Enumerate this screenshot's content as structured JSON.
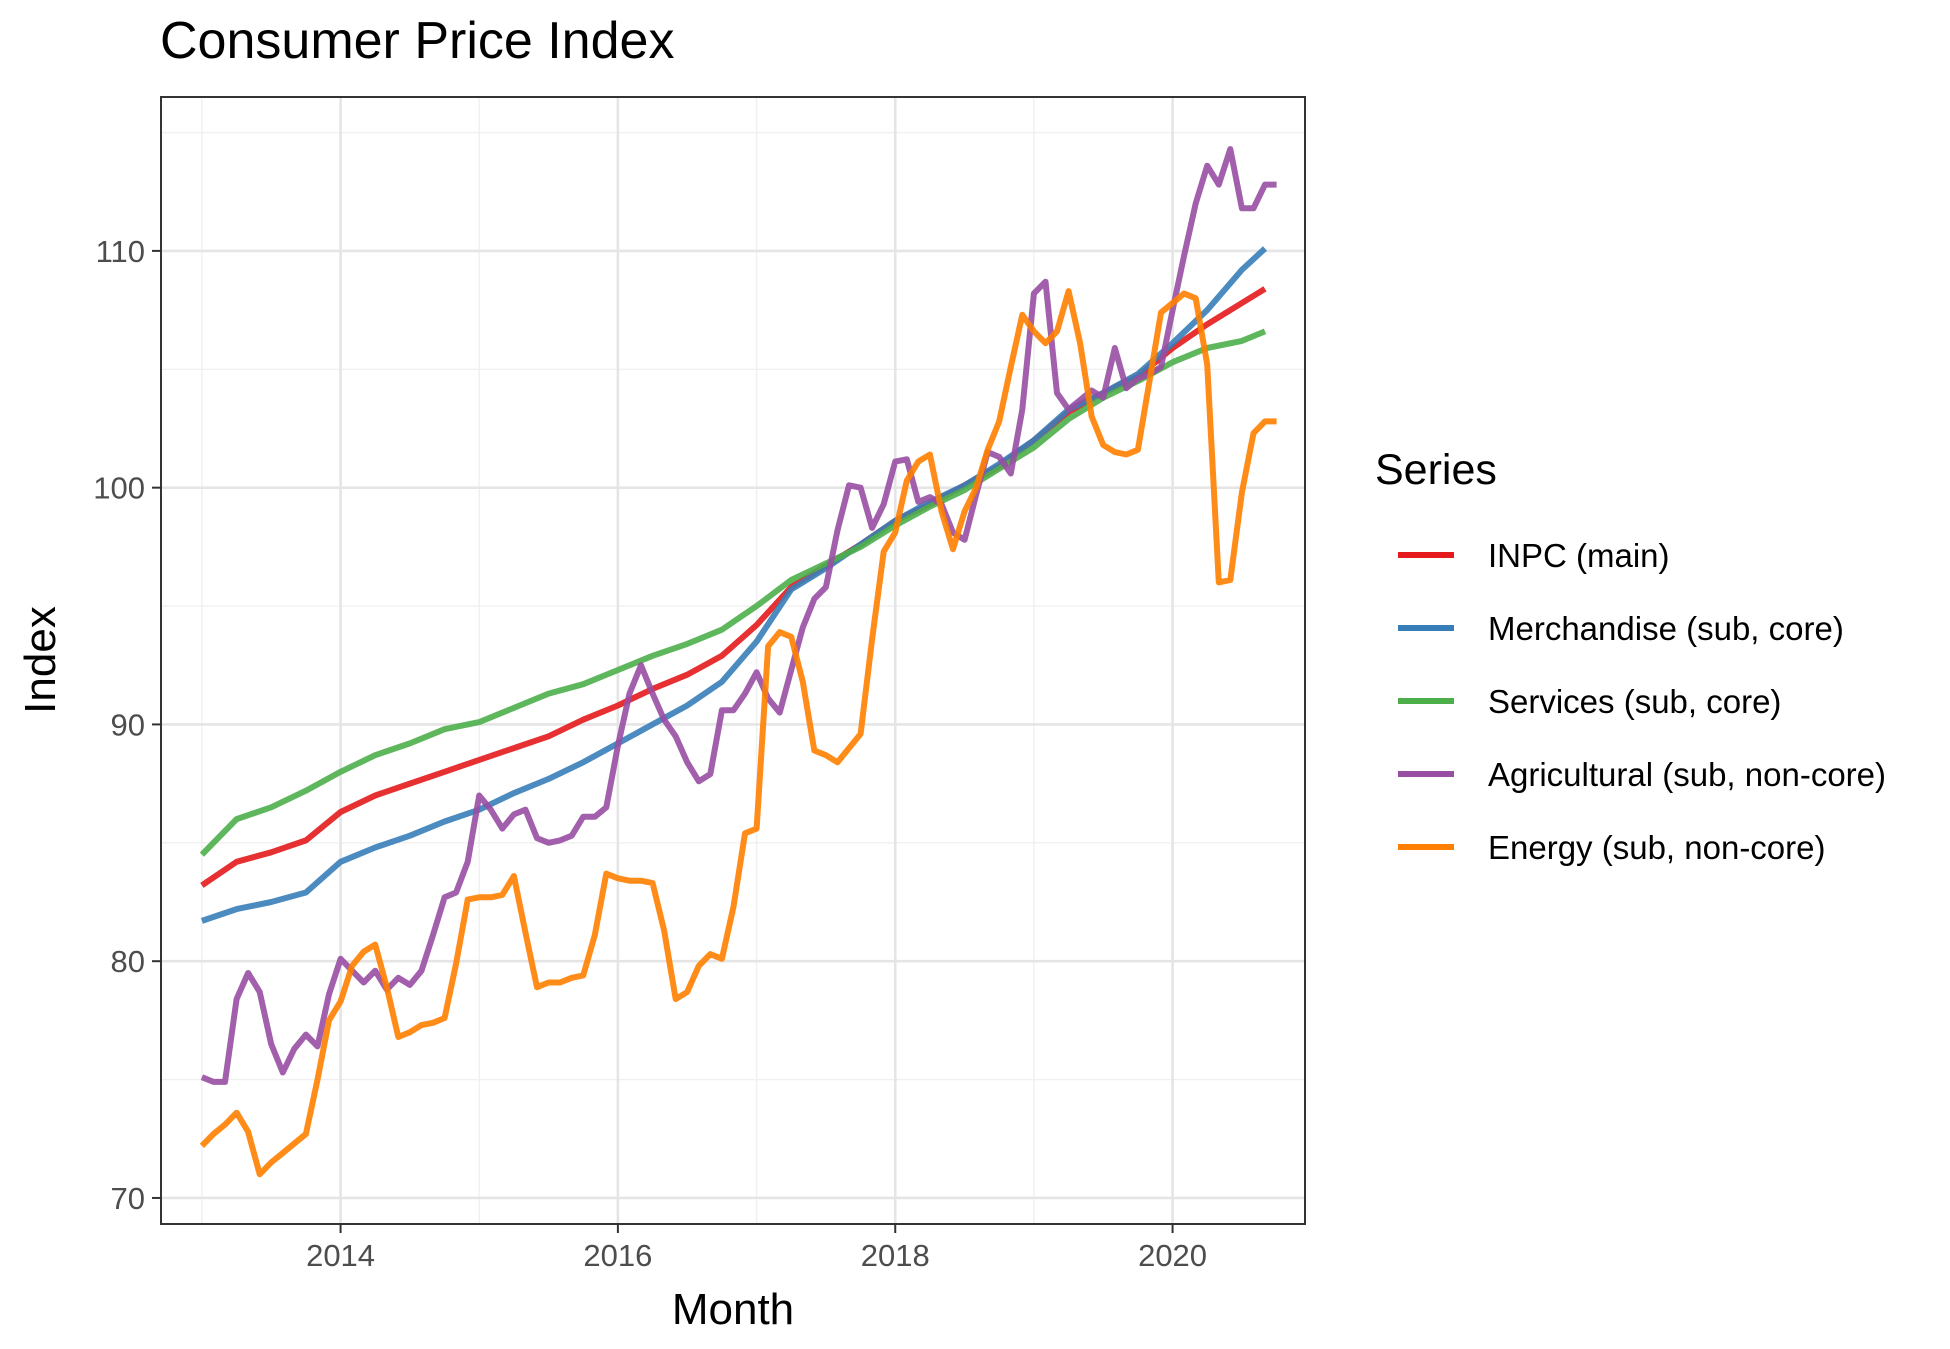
{
  "chart_data": {
    "type": "line",
    "title": "Consumer Price Index",
    "xlabel": "Month",
    "ylabel": "Index",
    "xlim": [
      "2012-09-15",
      "2020-12-15"
    ],
    "ylim": [
      68.9,
      116.5
    ],
    "x_ticks": [
      2014,
      2016,
      2018,
      2020
    ],
    "y_ticks": [
      70,
      80,
      90,
      100,
      110
    ],
    "x_tick_labels": [
      "2014",
      "2016",
      "2018",
      "2020"
    ],
    "y_tick_labels": [
      "70",
      "80",
      "90",
      "100",
      "110"
    ],
    "grid": true,
    "legend": {
      "title": "Series",
      "position": "right"
    },
    "series": [
      {
        "name": "INPC (main)",
        "color": "#e41a1c",
        "points": [
          [
            "2013-01",
            83.2
          ],
          [
            "2013-04",
            84.2
          ],
          [
            "2013-07",
            84.6
          ],
          [
            "2013-10",
            85.1
          ],
          [
            "2014-01",
            86.3
          ],
          [
            "2014-04",
            87.0
          ],
          [
            "2014-07",
            87.5
          ],
          [
            "2014-10",
            88.0
          ],
          [
            "2015-01",
            88.5
          ],
          [
            "2015-04",
            89.0
          ],
          [
            "2015-07",
            89.5
          ],
          [
            "2015-10",
            90.2
          ],
          [
            "2016-01",
            90.8
          ],
          [
            "2016-04",
            91.5
          ],
          [
            "2016-07",
            92.1
          ],
          [
            "2016-10",
            92.9
          ],
          [
            "2017-01",
            94.2
          ],
          [
            "2017-04",
            95.8
          ],
          [
            "2017-07",
            96.7
          ],
          [
            "2017-10",
            97.6
          ],
          [
            "2018-01",
            98.6
          ],
          [
            "2018-04",
            99.3
          ],
          [
            "2018-07",
            100.1
          ],
          [
            "2018-10",
            100.9
          ],
          [
            "2019-01",
            102.0
          ],
          [
            "2019-04",
            103.2
          ],
          [
            "2019-07",
            104.0
          ],
          [
            "2019-10",
            104.7
          ],
          [
            "2020-01",
            105.9
          ],
          [
            "2020-04",
            106.9
          ],
          [
            "2020-07",
            107.8
          ],
          [
            "2020-09",
            108.4
          ]
        ]
      },
      {
        "name": "Merchandise (sub, core)",
        "color": "#377eb8",
        "points": [
          [
            "2013-01",
            81.7
          ],
          [
            "2013-04",
            82.2
          ],
          [
            "2013-07",
            82.5
          ],
          [
            "2013-10",
            82.9
          ],
          [
            "2014-01",
            84.2
          ],
          [
            "2014-04",
            84.8
          ],
          [
            "2014-07",
            85.3
          ],
          [
            "2014-10",
            85.9
          ],
          [
            "2015-01",
            86.4
          ],
          [
            "2015-04",
            87.1
          ],
          [
            "2015-07",
            87.7
          ],
          [
            "2015-10",
            88.4
          ],
          [
            "2016-01",
            89.2
          ],
          [
            "2016-04",
            90.0
          ],
          [
            "2016-07",
            90.8
          ],
          [
            "2016-10",
            91.8
          ],
          [
            "2017-01",
            93.5
          ],
          [
            "2017-04",
            95.7
          ],
          [
            "2017-07",
            96.6
          ],
          [
            "2017-10",
            97.6
          ],
          [
            "2018-01",
            98.6
          ],
          [
            "2018-04",
            99.4
          ],
          [
            "2018-07",
            100.1
          ],
          [
            "2018-10",
            101.0
          ],
          [
            "2019-01",
            102.0
          ],
          [
            "2019-04",
            103.3
          ],
          [
            "2019-07",
            104.0
          ],
          [
            "2019-10",
            104.8
          ],
          [
            "2020-01",
            106.1
          ],
          [
            "2020-04",
            107.5
          ],
          [
            "2020-07",
            109.2
          ],
          [
            "2020-09",
            110.1
          ]
        ]
      },
      {
        "name": "Services (sub, core)",
        "color": "#4daf4a",
        "points": [
          [
            "2013-01",
            84.5
          ],
          [
            "2013-04",
            86.0
          ],
          [
            "2013-07",
            86.5
          ],
          [
            "2013-10",
            87.2
          ],
          [
            "2014-01",
            88.0
          ],
          [
            "2014-04",
            88.7
          ],
          [
            "2014-07",
            89.2
          ],
          [
            "2014-10",
            89.8
          ],
          [
            "2015-01",
            90.1
          ],
          [
            "2015-04",
            90.7
          ],
          [
            "2015-07",
            91.3
          ],
          [
            "2015-10",
            91.7
          ],
          [
            "2016-01",
            92.3
          ],
          [
            "2016-04",
            92.9
          ],
          [
            "2016-07",
            93.4
          ],
          [
            "2016-10",
            94.0
          ],
          [
            "2017-01",
            95.0
          ],
          [
            "2017-04",
            96.1
          ],
          [
            "2017-07",
            96.8
          ],
          [
            "2017-10",
            97.5
          ],
          [
            "2018-01",
            98.4
          ],
          [
            "2018-04",
            99.2
          ],
          [
            "2018-07",
            99.9
          ],
          [
            "2018-10",
            100.8
          ],
          [
            "2019-01",
            101.7
          ],
          [
            "2019-04",
            102.9
          ],
          [
            "2019-07",
            103.8
          ],
          [
            "2019-10",
            104.5
          ],
          [
            "2020-01",
            105.3
          ],
          [
            "2020-04",
            105.9
          ],
          [
            "2020-07",
            106.2
          ],
          [
            "2020-09",
            106.6
          ]
        ]
      },
      {
        "name": "Agricultural (sub, non-core)",
        "color": "#984ea3",
        "points": [
          [
            "2013-01",
            75.1
          ],
          [
            "2013-02",
            74.9
          ],
          [
            "2013-03",
            74.9
          ],
          [
            "2013-04",
            78.4
          ],
          [
            "2013-05",
            79.5
          ],
          [
            "2013-06",
            78.7
          ],
          [
            "2013-07",
            76.5
          ],
          [
            "2013-08",
            75.3
          ],
          [
            "2013-09",
            76.3
          ],
          [
            "2013-10",
            76.9
          ],
          [
            "2013-11",
            76.4
          ],
          [
            "2013-12",
            78.6
          ],
          [
            "2014-01",
            80.1
          ],
          [
            "2014-02",
            79.6
          ],
          [
            "2014-03",
            79.1
          ],
          [
            "2014-04",
            79.6
          ],
          [
            "2014-05",
            78.8
          ],
          [
            "2014-06",
            79.3
          ],
          [
            "2014-07",
            79.0
          ],
          [
            "2014-08",
            79.6
          ],
          [
            "2014-09",
            81.1
          ],
          [
            "2014-10",
            82.7
          ],
          [
            "2014-11",
            82.9
          ],
          [
            "2014-12",
            84.2
          ],
          [
            "2015-01",
            87.0
          ],
          [
            "2015-02",
            86.4
          ],
          [
            "2015-03",
            85.6
          ],
          [
            "2015-04",
            86.2
          ],
          [
            "2015-05",
            86.4
          ],
          [
            "2015-06",
            85.2
          ],
          [
            "2015-07",
            85.0
          ],
          [
            "2015-08",
            85.1
          ],
          [
            "2015-09",
            85.3
          ],
          [
            "2015-10",
            86.1
          ],
          [
            "2015-11",
            86.1
          ],
          [
            "2015-12",
            86.5
          ],
          [
            "2016-01",
            89.1
          ],
          [
            "2016-02",
            91.3
          ],
          [
            "2016-03",
            92.5
          ],
          [
            "2016-04",
            91.3
          ],
          [
            "2016-05",
            90.2
          ],
          [
            "2016-06",
            89.5
          ],
          [
            "2016-07",
            88.4
          ],
          [
            "2016-08",
            87.6
          ],
          [
            "2016-09",
            87.9
          ],
          [
            "2016-10",
            90.6
          ],
          [
            "2016-11",
            90.6
          ],
          [
            "2016-12",
            91.3
          ],
          [
            "2017-01",
            92.2
          ],
          [
            "2017-02",
            91.1
          ],
          [
            "2017-03",
            90.5
          ],
          [
            "2017-04",
            92.3
          ],
          [
            "2017-05",
            94.1
          ],
          [
            "2017-06",
            95.3
          ],
          [
            "2017-07",
            95.8
          ],
          [
            "2017-08",
            98.2
          ],
          [
            "2017-09",
            100.1
          ],
          [
            "2017-10",
            100.0
          ],
          [
            "2017-11",
            98.3
          ],
          [
            "2017-12",
            99.3
          ],
          [
            "2018-01",
            101.1
          ],
          [
            "2018-02",
            101.2
          ],
          [
            "2018-03",
            99.4
          ],
          [
            "2018-04",
            99.6
          ],
          [
            "2018-05",
            99.3
          ],
          [
            "2018-06",
            98.1
          ],
          [
            "2018-07",
            97.8
          ],
          [
            "2018-08",
            99.7
          ],
          [
            "2018-09",
            101.5
          ],
          [
            "2018-10",
            101.3
          ],
          [
            "2018-11",
            100.6
          ],
          [
            "2018-12",
            103.3
          ],
          [
            "2019-01",
            108.2
          ],
          [
            "2019-02",
            108.7
          ],
          [
            "2019-03",
            104.0
          ],
          [
            "2019-04",
            103.3
          ],
          [
            "2019-05",
            103.7
          ],
          [
            "2019-06",
            104.1
          ],
          [
            "2019-07",
            103.8
          ],
          [
            "2019-08",
            105.9
          ],
          [
            "2019-09",
            104.2
          ],
          [
            "2019-10",
            104.6
          ],
          [
            "2019-11",
            104.8
          ],
          [
            "2019-12",
            105.1
          ],
          [
            "2020-01",
            107.5
          ],
          [
            "2020-02",
            109.8
          ],
          [
            "2020-03",
            112.0
          ],
          [
            "2020-04",
            113.6
          ],
          [
            "2020-05",
            112.8
          ],
          [
            "2020-06",
            114.3
          ],
          [
            "2020-07",
            111.8
          ],
          [
            "2020-08",
            111.8
          ],
          [
            "2020-09",
            112.8
          ],
          [
            "2020-10",
            112.8
          ]
        ]
      },
      {
        "name": "Energy (sub, non-core)",
        "color": "#ff7f00",
        "points": [
          [
            "2013-01",
            72.2
          ],
          [
            "2013-02",
            72.7
          ],
          [
            "2013-03",
            73.1
          ],
          [
            "2013-04",
            73.6
          ],
          [
            "2013-05",
            72.8
          ],
          [
            "2013-06",
            71.0
          ],
          [
            "2013-07",
            71.5
          ],
          [
            "2013-08",
            71.9
          ],
          [
            "2013-09",
            72.3
          ],
          [
            "2013-10",
            72.7
          ],
          [
            "2013-11",
            75.0
          ],
          [
            "2013-12",
            77.5
          ],
          [
            "2014-01",
            78.3
          ],
          [
            "2014-02",
            79.8
          ],
          [
            "2014-03",
            80.4
          ],
          [
            "2014-04",
            80.7
          ],
          [
            "2014-05",
            78.9
          ],
          [
            "2014-06",
            76.8
          ],
          [
            "2014-07",
            77.0
          ],
          [
            "2014-08",
            77.3
          ],
          [
            "2014-09",
            77.4
          ],
          [
            "2014-10",
            77.6
          ],
          [
            "2014-11",
            79.9
          ],
          [
            "2014-12",
            82.6
          ],
          [
            "2015-01",
            82.7
          ],
          [
            "2015-02",
            82.7
          ],
          [
            "2015-03",
            82.8
          ],
          [
            "2015-04",
            83.6
          ],
          [
            "2015-05",
            81.2
          ],
          [
            "2015-06",
            78.9
          ],
          [
            "2015-07",
            79.1
          ],
          [
            "2015-08",
            79.1
          ],
          [
            "2015-09",
            79.3
          ],
          [
            "2015-10",
            79.4
          ],
          [
            "2015-11",
            81.1
          ],
          [
            "2015-12",
            83.7
          ],
          [
            "2016-01",
            83.5
          ],
          [
            "2016-02",
            83.4
          ],
          [
            "2016-03",
            83.4
          ],
          [
            "2016-04",
            83.3
          ],
          [
            "2016-05",
            81.3
          ],
          [
            "2016-06",
            78.4
          ],
          [
            "2016-07",
            78.7
          ],
          [
            "2016-08",
            79.8
          ],
          [
            "2016-09",
            80.3
          ],
          [
            "2016-10",
            80.1
          ],
          [
            "2016-11",
            82.3
          ],
          [
            "2016-12",
            85.4
          ],
          [
            "2017-01",
            85.6
          ],
          [
            "2017-02",
            93.3
          ],
          [
            "2017-03",
            93.9
          ],
          [
            "2017-04",
            93.7
          ],
          [
            "2017-05",
            91.8
          ],
          [
            "2017-06",
            88.9
          ],
          [
            "2017-07",
            88.7
          ],
          [
            "2017-08",
            88.4
          ],
          [
            "2017-09",
            89.0
          ],
          [
            "2017-10",
            89.6
          ],
          [
            "2017-11",
            93.6
          ],
          [
            "2017-12",
            97.3
          ],
          [
            "2018-01",
            98.1
          ],
          [
            "2018-02",
            100.3
          ],
          [
            "2018-03",
            101.1
          ],
          [
            "2018-04",
            101.4
          ],
          [
            "2018-05",
            99.0
          ],
          [
            "2018-06",
            97.4
          ],
          [
            "2018-07",
            99.0
          ],
          [
            "2018-08",
            100.0
          ],
          [
            "2018-09",
            101.6
          ],
          [
            "2018-10",
            102.8
          ],
          [
            "2018-11",
            105.1
          ],
          [
            "2018-12",
            107.3
          ],
          [
            "2019-01",
            106.6
          ],
          [
            "2019-02",
            106.1
          ],
          [
            "2019-03",
            106.6
          ],
          [
            "2019-04",
            108.3
          ],
          [
            "2019-05",
            106.1
          ],
          [
            "2019-06",
            103.0
          ],
          [
            "2019-07",
            101.8
          ],
          [
            "2019-08",
            101.5
          ],
          [
            "2019-09",
            101.4
          ],
          [
            "2019-10",
            101.6
          ],
          [
            "2019-11",
            104.5
          ],
          [
            "2019-12",
            107.4
          ],
          [
            "2020-01",
            107.8
          ],
          [
            "2020-02",
            108.2
          ],
          [
            "2020-03",
            108.0
          ],
          [
            "2020-04",
            105.2
          ],
          [
            "2020-05",
            96.0
          ],
          [
            "2020-06",
            96.1
          ],
          [
            "2020-07",
            99.8
          ],
          [
            "2020-08",
            102.3
          ],
          [
            "2020-09",
            102.8
          ],
          [
            "2020-10",
            102.8
          ]
        ]
      }
    ]
  }
}
